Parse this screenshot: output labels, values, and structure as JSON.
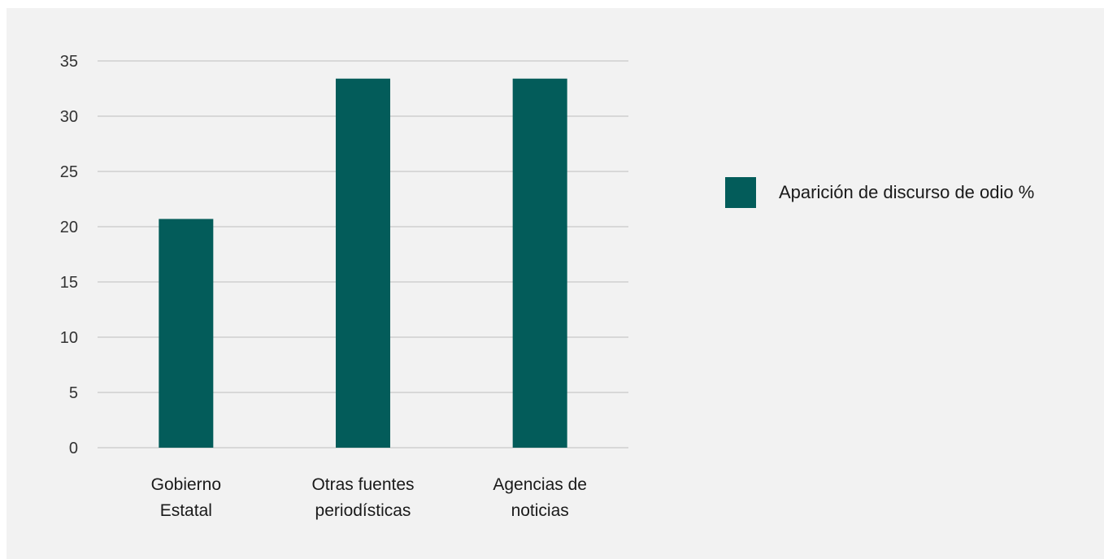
{
  "chart_data": {
    "type": "bar",
    "categories": [
      [
        "Gobierno",
        "Estatal"
      ],
      [
        "Otras fuentes",
        "periodísticas"
      ],
      [
        "Agencias de",
        "noticias"
      ]
    ],
    "series": [
      {
        "name": "Aparición de discurso de odio %",
        "values": [
          20.7,
          33.4,
          33.4
        ],
        "color": "#035c5a"
      }
    ],
    "y_ticks": [
      0,
      5,
      10,
      15,
      20,
      25,
      30,
      35
    ],
    "ylim": [
      0,
      35
    ],
    "grid": true,
    "legend_position": "right",
    "gridline_color": "#c8c8c8",
    "background_color": "#f2f2f2"
  }
}
